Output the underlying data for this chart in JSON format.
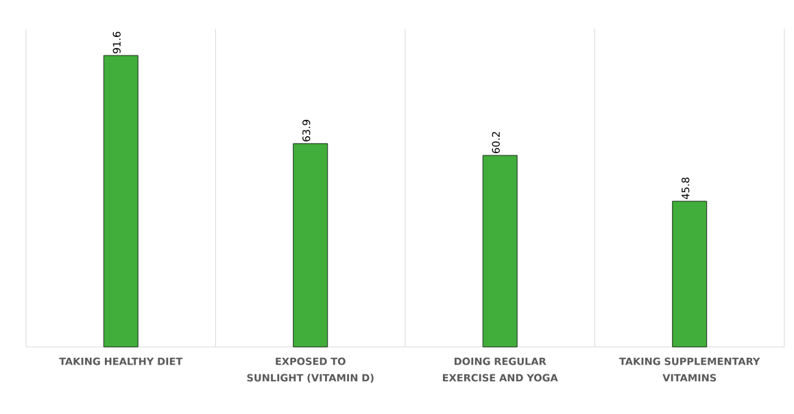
{
  "chart_data": {
    "type": "bar",
    "categories": [
      "TAKING HEALTHY DIET",
      "EXPOSED TO SUNLIGHT (VITAMIN D)",
      "DOING REGULAR EXERCISE AND YOGA",
      "TAKING SUPPLEMENTARY VITAMINS"
    ],
    "values": [
      91.6,
      63.9,
      60.2,
      45.8
    ],
    "color": "#41ad3a",
    "ylim": [
      0,
      100
    ],
    "data_labels": true,
    "grid": "x",
    "tick_labels": "x"
  }
}
